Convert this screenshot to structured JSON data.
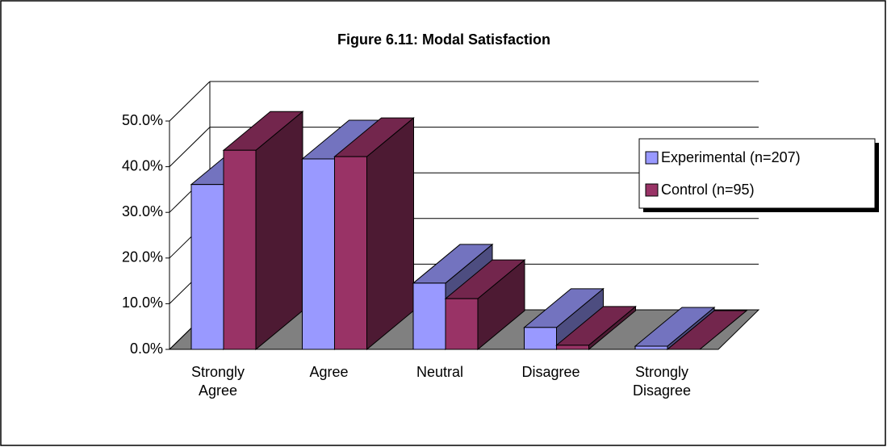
{
  "chart_data": {
    "type": "bar3d",
    "title": "Figure 6.11: Modal Satisfaction",
    "categories": [
      "Strongly Agree",
      "Agree",
      "Neutral",
      "Disagree",
      "Strongly Disagree"
    ],
    "series": [
      {
        "name": "Experimental (n=207)",
        "color": "#9999ff",
        "values": [
          36.1,
          41.7,
          14.5,
          4.8,
          0.7
        ]
      },
      {
        "name": "Control (n=95)",
        "color": "#993366",
        "values": [
          43.6,
          42.2,
          11.1,
          0.9,
          0
        ]
      }
    ],
    "ylim": [
      0,
      50
    ],
    "yticks": [
      {
        "value": 0,
        "label": "0.0%"
      },
      {
        "value": 10,
        "label": "10.0%"
      },
      {
        "value": 20,
        "label": "20.0%"
      },
      {
        "value": 30,
        "label": "30.0%"
      },
      {
        "value": 40,
        "label": "40.0%"
      },
      {
        "value": 50,
        "label": "50.0%"
      }
    ],
    "grid": true,
    "legend": "right"
  }
}
